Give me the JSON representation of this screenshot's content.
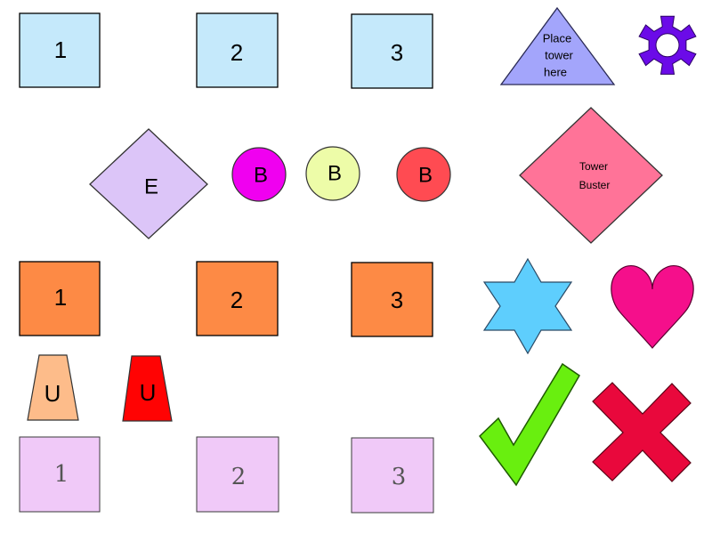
{
  "palette": {
    "light_blue": "#c5e9fb",
    "orange": "#fd8a45",
    "light_purple": "#f0c9f8",
    "lavender": "#dcc5f8",
    "magenta": "#f000f0",
    "pale_yellow": "#edfca8",
    "red": "#ff4b52",
    "triangle_blue": "#a3a5fb",
    "gear_purple": "#6b0be8",
    "pink_diamond": "#ff7398",
    "star_blue": "#5ecefd",
    "heart_pink": "#f50f8b",
    "peach": "#fdbc8a",
    "bright_red": "#ff0303",
    "check_green": "#69ef0f",
    "x_red": "#e9083c"
  },
  "tower_buttons_blue": [
    {
      "label": "1",
      "icon": "tower-slot-1"
    },
    {
      "label": "2",
      "icon": "tower-slot-2"
    },
    {
      "label": "3",
      "icon": "tower-slot-3"
    }
  ],
  "place_tower": {
    "line1": "Place",
    "line2": "tower",
    "line3": "here",
    "icon": "triangle-icon"
  },
  "settings": {
    "icon": "gear-icon"
  },
  "enemy": {
    "label": "E",
    "icon": "diamond-icon"
  },
  "bullets": [
    {
      "label": "B",
      "color": "#f000f0"
    },
    {
      "label": "B",
      "color": "#edfca8"
    },
    {
      "label": "B",
      "color": "#ff4b52"
    }
  ],
  "tower_buster": {
    "line1": "Tower",
    "line2": "Buster",
    "icon": "diamond-icon"
  },
  "tower_buttons_orange": [
    {
      "label": "1"
    },
    {
      "label": "2"
    },
    {
      "label": "3"
    }
  ],
  "star": {
    "icon": "star-icon"
  },
  "heart": {
    "icon": "heart-icon"
  },
  "upgrades": [
    {
      "label": "U",
      "color": "#fdbc8a"
    },
    {
      "label": "U",
      "color": "#ff0303"
    }
  ],
  "confirm": {
    "icon": "checkmark-icon"
  },
  "cancel": {
    "icon": "x-icon"
  },
  "tower_buttons_purple": [
    {
      "label": "1"
    },
    {
      "label": "2"
    },
    {
      "label": "3"
    }
  ]
}
